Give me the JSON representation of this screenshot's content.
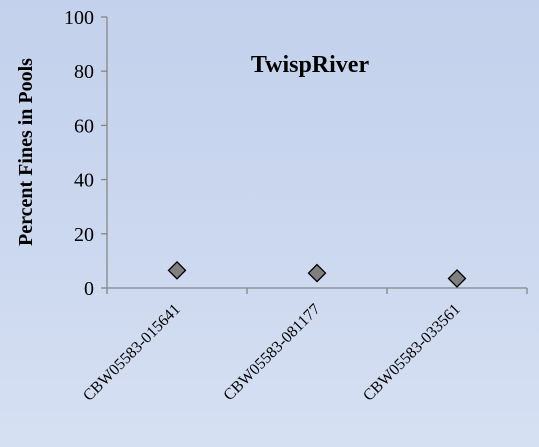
{
  "chart_data": {
    "type": "scatter",
    "title": "TwispRiver",
    "xlabel": "",
    "ylabel": "Percent Fines in Pools",
    "categories": [
      "CBW05583-015641",
      "CBW05583-081177",
      "CBW05583-033561"
    ],
    "series": [
      {
        "values": [
          6.5,
          5.5,
          3.5
        ],
        "marker": "diamond",
        "color": "#808080"
      }
    ],
    "ylim": [
      0,
      100
    ],
    "yticks": [
      0,
      20,
      40,
      60,
      80,
      100
    ],
    "grid": false,
    "legend": "none"
  }
}
